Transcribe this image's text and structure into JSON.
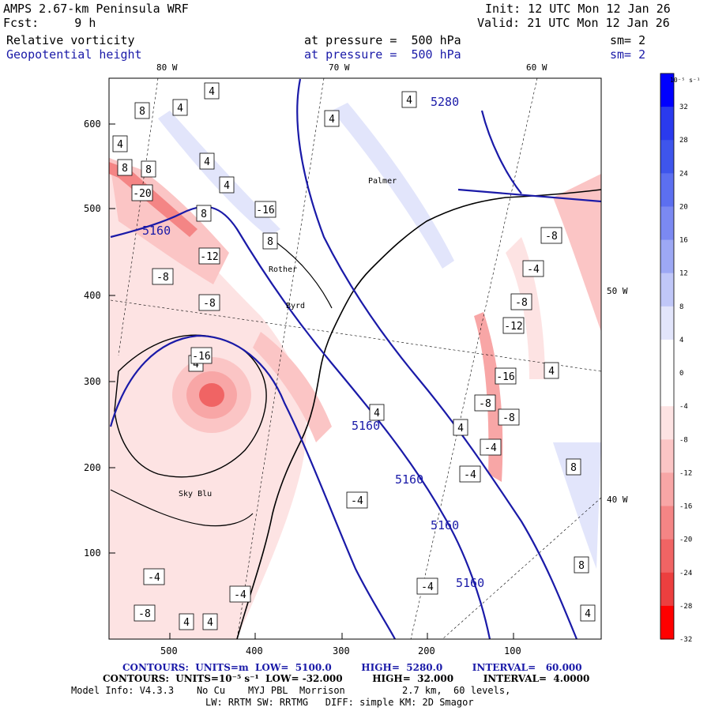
{
  "header": {
    "title": "AMPS 2.67-km Peninsula WRF",
    "forecast": "Fcst:     9 h",
    "init": "Init: 12 UTC Mon 12 Jan 26",
    "valid": "Valid: 21 UTC Mon 12 Jan 26",
    "field1": "Relative vorticity",
    "field1_level": "at pressure =  500 hPa",
    "field1_sm": "sm= 2",
    "field2": "Geopotential height",
    "field2_level": "at pressure =  500 hPa",
    "field2_sm": "sm= 2"
  },
  "axes": {
    "top_lon_labels": [
      "80 W",
      "70 W",
      "60 W"
    ],
    "right_lon_labels": [
      "50 W",
      "40 W"
    ],
    "y_ticks": [
      "600",
      "500",
      "400",
      "300",
      "200",
      "100"
    ],
    "x_ticks": [
      "500",
      "400",
      "300",
      "200",
      "100"
    ]
  },
  "place_labels": [
    "Palmer",
    "Rother",
    "Byrd",
    "Sky Blu"
  ],
  "height_contour_labels": [
    "5280",
    "5160",
    "5160",
    "5160",
    "5160",
    "5160"
  ],
  "vorticity_labels": [
    "4",
    "4",
    "4",
    "8",
    "8",
    "4",
    "8",
    "4",
    "-20",
    "-16",
    "8",
    "4",
    "-12",
    "-8",
    "-8",
    "-16",
    "4",
    "4",
    "8",
    "-8",
    "-4",
    "-8",
    "-12",
    "-16",
    "-8",
    "-8",
    "-4",
    "-4",
    "-8",
    "4",
    "4",
    "-4",
    "-4",
    "-4",
    "-4",
    "4",
    "4",
    "8",
    "4",
    "8",
    "4"
  ],
  "colorbar": {
    "unit": "10⁻⁵ s⁻¹",
    "labels": [
      "32",
      "28",
      "24",
      "20",
      "16",
      "12",
      "8",
      "4",
      "0",
      "-4",
      "-8",
      "-12",
      "-16",
      "-20",
      "-24",
      "-28",
      "-32"
    ],
    "colors": [
      "#0000ff",
      "#2a3aee",
      "#3e55ec",
      "#5c6ff0",
      "#7b89f2",
      "#9da8f4",
      "#c0c7f8",
      "#e2e5fb",
      "#ffffff",
      "#ffffff",
      "#fde3e3",
      "#fbc5c5",
      "#f8a6a6",
      "#f48585",
      "#f06464",
      "#ec3f3f",
      "#ff0000"
    ]
  },
  "footer": {
    "line1": "CONTOURS:  UNITS=m  LOW=  5100.0         HIGH=  5280.0         INTERVAL=   60.000",
    "line2": "CONTOURS:  UNITS=10⁻⁵ s⁻¹  LOW= -32.000         HIGH=  32.000         INTERVAL=  4.0000",
    "line3": "Model Info: V4.3.3    No Cu    MYJ PBL  Morrison          2.7 km,  60 levels,",
    "line4": "LW: RRTM SW: RRTMG   DIFF: simple KM: 2D Smagor"
  },
  "colors": {
    "height_contour": "#1a1aa8",
    "coast": "#000000"
  }
}
